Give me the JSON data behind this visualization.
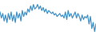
{
  "values": [
    3,
    -1,
    2,
    -3,
    1,
    -4,
    2,
    -2,
    3,
    -3,
    1,
    -4,
    3,
    -1,
    2,
    -3,
    4,
    0,
    3,
    1,
    5,
    3,
    7,
    4,
    8,
    5,
    6,
    8,
    5,
    7,
    4,
    6,
    3,
    5,
    2,
    4,
    3,
    2,
    3,
    1,
    2,
    0,
    1,
    2,
    0,
    1,
    -1,
    3,
    -2,
    4,
    0,
    2,
    -1,
    1,
    3,
    -1,
    2,
    0,
    -3,
    1,
    -2,
    0,
    -1,
    1,
    -5,
    0,
    -8,
    -4,
    -10,
    -5
  ],
  "line_color": "#4393c7",
  "linewidth": 0.9,
  "bg_color": "#ffffff",
  "ylim": [
    -13,
    11
  ]
}
